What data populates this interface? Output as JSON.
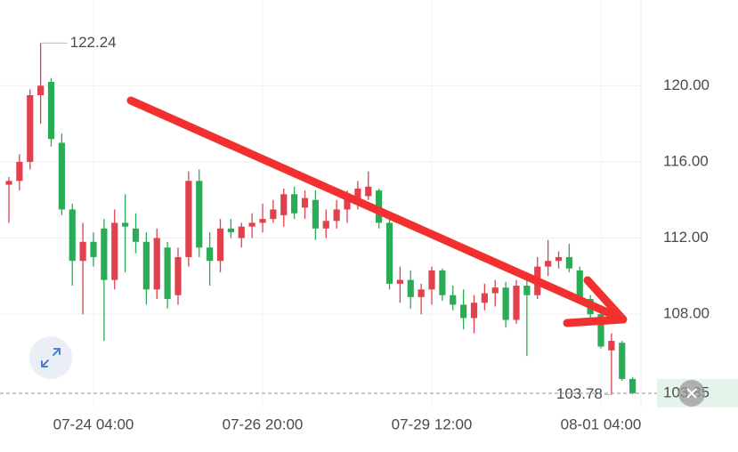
{
  "chart_data": {
    "type": "candlestick",
    "categories": [
      null,
      null,
      null,
      null,
      null,
      null,
      null,
      null,
      "07-24 04:00",
      null,
      null,
      null,
      null,
      null,
      null,
      null,
      null,
      null,
      null,
      null,
      null,
      null,
      null,
      null,
      "07-26 20:00",
      null,
      null,
      null,
      null,
      null,
      null,
      null,
      null,
      null,
      null,
      null,
      null,
      null,
      null,
      null,
      "07-29 12:00",
      null,
      null,
      null,
      null,
      null,
      null,
      null,
      null,
      null,
      null,
      null,
      null,
      null,
      null,
      null,
      "08-01 04:00",
      null,
      null,
      null
    ],
    "open": [
      114.8,
      115.0,
      116.0,
      119.5,
      120.2,
      117.0,
      113.5,
      110.8,
      111.8,
      112.5,
      109.8,
      112.8,
      112.5,
      111.8,
      109.3,
      111.5,
      109.0,
      111.0,
      115.0,
      111.5,
      110.8,
      112.5,
      112.0,
      112.6,
      112.8,
      113.0,
      113.2,
      114.3,
      113.6,
      114.0,
      112.5,
      112.9,
      113.5,
      114.0,
      114.2,
      114.5,
      112.8,
      109.6,
      109.8,
      108.9,
      109.3,
      110.3,
      109.0,
      108.5,
      107.8,
      108.6,
      109.1,
      109.4,
      107.7,
      109.5,
      109.0,
      110.5,
      110.8,
      111.0,
      110.3,
      108.8,
      108.0,
      106.1,
      106.5,
      104.6
    ],
    "high": [
      115.2,
      116.4,
      119.8,
      122.24,
      120.4,
      117.5,
      113.8,
      112.8,
      112.3,
      113.0,
      113.5,
      114.3,
      113.3,
      112.3,
      112.5,
      111.8,
      111.5,
      115.5,
      115.6,
      112.3,
      113.0,
      113.0,
      112.8,
      113.3,
      113.8,
      114.0,
      114.6,
      114.7,
      114.5,
      114.5,
      113.5,
      114.0,
      114.5,
      115.0,
      115.5,
      114.6,
      113.0,
      110.5,
      110.3,
      109.6,
      110.5,
      110.4,
      109.5,
      109.3,
      109.0,
      109.6,
      109.8,
      109.7,
      109.8,
      110.0,
      111.0,
      111.9,
      111.3,
      111.7,
      110.5,
      109.0,
      108.2,
      107.0,
      106.6,
      104.7
    ],
    "low": [
      112.8,
      114.5,
      115.6,
      118.0,
      116.8,
      113.2,
      109.5,
      108.0,
      110.5,
      106.6,
      109.3,
      110.2,
      111.2,
      108.5,
      108.8,
      108.3,
      108.5,
      110.5,
      111.0,
      109.5,
      110.2,
      112.0,
      111.5,
      112.0,
      112.3,
      112.8,
      112.6,
      113.0,
      113.0,
      111.9,
      112.0,
      112.5,
      112.8,
      113.5,
      114.0,
      112.5,
      109.3,
      108.6,
      108.3,
      108.0,
      108.5,
      108.7,
      108.2,
      107.2,
      107.0,
      108.2,
      108.4,
      107.3,
      107.5,
      105.8,
      108.8,
      110.0,
      110.4,
      110.2,
      108.6,
      107.8,
      106.2,
      103.78,
      104.5,
      103.8
    ],
    "close": [
      115.0,
      116.0,
      119.5,
      120.0,
      117.2,
      113.5,
      110.8,
      111.8,
      111.0,
      109.8,
      112.8,
      112.6,
      111.8,
      109.3,
      112.0,
      108.8,
      111.0,
      115.0,
      111.5,
      110.8,
      112.5,
      112.3,
      112.6,
      112.8,
      113.0,
      113.5,
      114.3,
      113.3,
      114.1,
      112.5,
      112.9,
      113.5,
      114.0,
      114.6,
      114.7,
      112.8,
      109.6,
      109.8,
      108.9,
      109.3,
      110.3,
      109.0,
      108.5,
      107.8,
      108.6,
      109.1,
      109.4,
      107.7,
      109.5,
      109.0,
      110.5,
      110.8,
      111.0,
      110.4,
      108.8,
      108.0,
      106.3,
      106.6,
      104.6,
      103.85
    ],
    "up_color": "#e0414d",
    "down_color": "#2aac57",
    "ylim": [
      103.1,
      124.5
    ],
    "yticks": [
      {
        "value": 108,
        "label": "108.00"
      },
      {
        "value": 112,
        "label": "112.00"
      },
      {
        "value": 116,
        "label": "116.00"
      },
      {
        "value": 120,
        "label": "120.00"
      }
    ],
    "grid": true
  }
}
